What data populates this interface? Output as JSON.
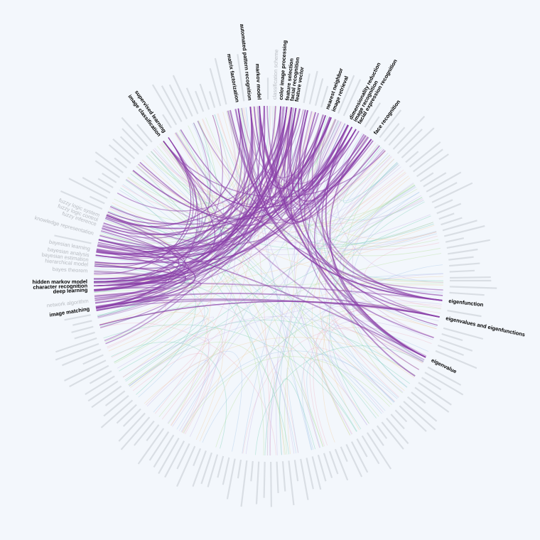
{
  "nodes": [
    {
      "label": "markov model",
      "highlighted": true
    },
    {
      "label": "automated pattern recognition",
      "highlighted": true
    },
    {
      "label": "matrix factorization",
      "highlighted": true
    },
    {
      "label": "supervised learning",
      "highlighted": true
    },
    {
      "label": "image classification",
      "highlighted": true
    },
    {
      "label": "classification scheme",
      "highlighted": false
    },
    {
      "label": "color image processing",
      "highlighted": true
    },
    {
      "label": "feature selection",
      "highlighted": true
    },
    {
      "label": "facial recognition",
      "highlighted": true
    },
    {
      "label": "feature vector",
      "highlighted": true
    },
    {
      "label": "nearest neighbor",
      "highlighted": true
    },
    {
      "label": "image retrieval",
      "highlighted": true
    },
    {
      "label": "dimensionality reduction",
      "highlighted": true
    },
    {
      "label": "image recognition",
      "highlighted": true
    },
    {
      "label": "facial expression recognition",
      "highlighted": true
    },
    {
      "label": "face recognition",
      "highlighted": true
    },
    {
      "label": "eigenfunction",
      "highlighted": true
    },
    {
      "label": "eigenvalues and eigenfunctions",
      "highlighted": true
    },
    {
      "label": "eigenvalue",
      "highlighted": true
    },
    {
      "label": "image matching",
      "highlighted": true
    },
    {
      "label": "network algorithm",
      "highlighted": false
    },
    {
      "label": "deep learning",
      "highlighted": true
    },
    {
      "label": "character recognition",
      "highlighted": true
    },
    {
      "label": "hidden markov model",
      "highlighted": true
    },
    {
      "label": "bayes theorem",
      "highlighted": false
    },
    {
      "label": "hierarchical model",
      "highlighted": false
    },
    {
      "label": "bayesian estimation",
      "highlighted": false
    },
    {
      "label": "bayesian analysis",
      "highlighted": false
    },
    {
      "label": "bayesian learning",
      "highlighted": false
    },
    {
      "label": "knowledge representation",
      "highlighted": false
    },
    {
      "label": "fuzzy inference",
      "highlighted": false
    },
    {
      "label": "fuzzy logic control",
      "highlighted": false
    },
    {
      "label": "fuzzy logic system",
      "highlighted": false
    }
  ]
}
